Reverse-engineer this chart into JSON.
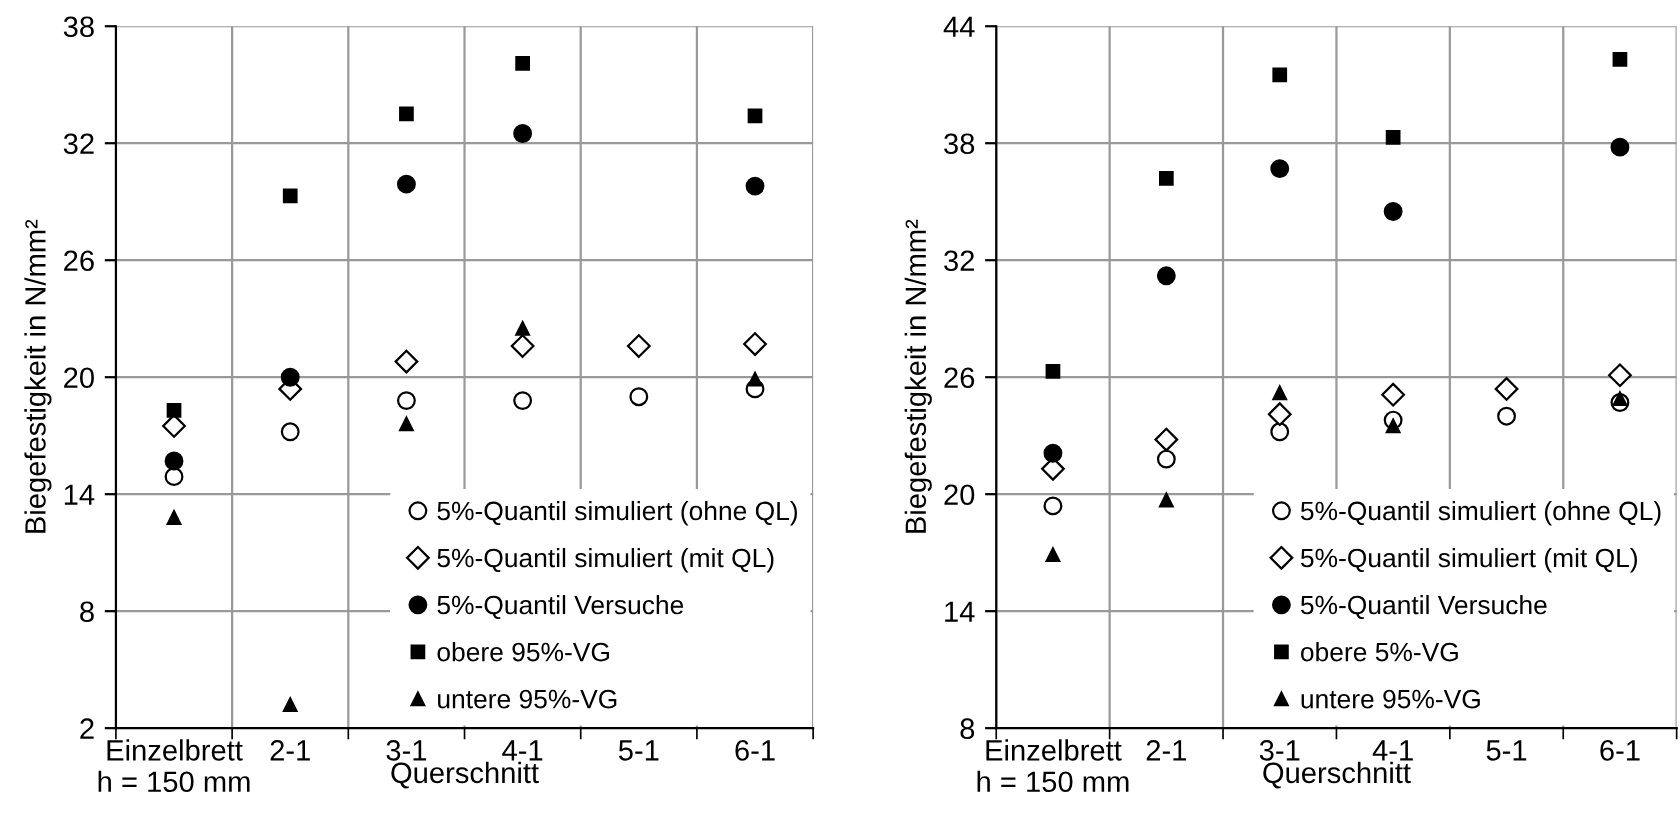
{
  "chart_data": [
    {
      "type": "scatter",
      "categories": [
        "Einzelbrett\nh = 150 mm",
        "2-1",
        "3-1",
        "4-1",
        "5-1",
        "6-1"
      ],
      "xlabel": "Querschnitt",
      "ylabel": "Biegefestigkeit in N/mm²",
      "ylim": [
        2,
        38
      ],
      "yticks": [
        2,
        8,
        14,
        20,
        26,
        32,
        38
      ],
      "grid": true,
      "legend": "bottom right",
      "series": [
        {
          "name": "5%-Quantil simuliert (ohne QL)",
          "color": "#ffffff",
          "marker": "circle",
          "values": [
            14.9,
            17.2,
            18.8,
            18.8,
            19.0,
            19.4
          ]
        },
        {
          "name": "5%-Quantil simuliert (mit QL)",
          "color": "#ffffff",
          "marker": "diamond",
          "values": [
            17.5,
            19.4,
            20.8,
            21.6,
            21.6,
            21.7
          ]
        },
        {
          "name": "5%-Quantil Versuche",
          "color": "#000000",
          "marker": "circle",
          "values": [
            15.7,
            20.0,
            29.9,
            32.5,
            null,
            29.8
          ]
        },
        {
          "name": "obere 95%-VG",
          "color": "#000000",
          "marker": "square",
          "values": [
            18.3,
            29.3,
            33.5,
            36.1,
            null,
            33.4
          ]
        },
        {
          "name": "untere 95%-VG",
          "color": "#000000",
          "marker": "triangle",
          "values": [
            12.8,
            3.2,
            17.6,
            22.5,
            null,
            19.9
          ]
        }
      ]
    },
    {
      "type": "scatter",
      "categories": [
        "Einzelbrett\nh = 150 mm",
        "2-1",
        "3-1",
        "4-1",
        "5-1",
        "6-1"
      ],
      "xlabel": "Querschnitt",
      "ylabel": "Biegefestigkeit in N/mm²",
      "ylim": [
        8,
        44
      ],
      "yticks": [
        8,
        14,
        20,
        26,
        32,
        38,
        44
      ],
      "grid": true,
      "legend": "bottom right",
      "series": [
        {
          "name": "5%-Quantil simuliert (ohne QL)",
          "color": "#ffffff",
          "marker": "circle",
          "values": [
            19.4,
            21.8,
            23.2,
            23.8,
            24.0,
            24.7
          ]
        },
        {
          "name": "5%-Quantil simuliert (mit QL)",
          "color": "#ffffff",
          "marker": "diamond",
          "values": [
            21.3,
            22.8,
            24.1,
            25.1,
            25.4,
            26.1
          ]
        },
        {
          "name": "5%-Quantil Versuche",
          "color": "#000000",
          "marker": "circle",
          "values": [
            22.1,
            31.2,
            36.7,
            34.5,
            null,
            37.8
          ]
        },
        {
          "name": "obere 5%-VG",
          "color": "#000000",
          "marker": "square",
          "values": [
            26.3,
            36.2,
            41.5,
            38.3,
            null,
            42.3
          ]
        },
        {
          "name": "untere 95%-VG",
          "color": "#000000",
          "marker": "triangle",
          "values": [
            16.9,
            19.7,
            25.2,
            23.5,
            null,
            24.9
          ]
        }
      ]
    }
  ]
}
